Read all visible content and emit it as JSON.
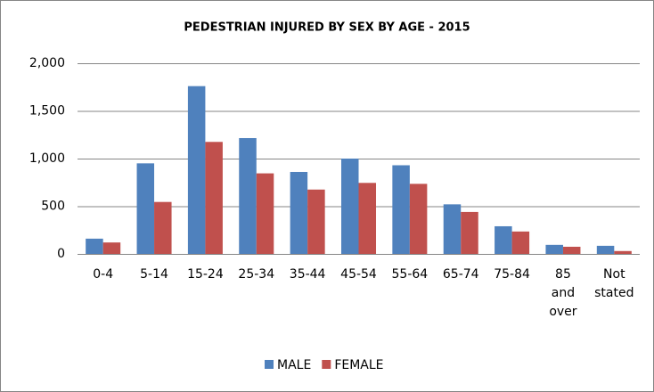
{
  "chart_data": {
    "type": "bar",
    "title": "PEDESTRIAN INJURED BY SEX BY AGE - 2015",
    "categories": [
      "0-4",
      "5-14",
      "15-24",
      "25-34",
      "35-44",
      "45-54",
      "55-64",
      "65-74",
      "75-84",
      "85 and over",
      "Not stated"
    ],
    "series": [
      {
        "name": "MALE",
        "color": "#4f81bd",
        "values": [
          160,
          950,
          1760,
          1215,
          860,
          1000,
          930,
          520,
          290,
          95,
          85
        ]
      },
      {
        "name": "FEMALE",
        "color": "#c0504d",
        "values": [
          120,
          545,
          1175,
          845,
          675,
          745,
          735,
          440,
          235,
          75,
          30
        ]
      }
    ],
    "ylim": [
      0,
      2000
    ],
    "yticks": [
      0,
      {
        "value": 500,
        "label": "500"
      },
      {
        "value": 1000,
        "label": "1,000"
      },
      {
        "value": 1500,
        "label": "1,500"
      },
      {
        "value": 2000,
        "label": "2,000"
      }
    ],
    "grid": true,
    "legend": "bottom"
  }
}
